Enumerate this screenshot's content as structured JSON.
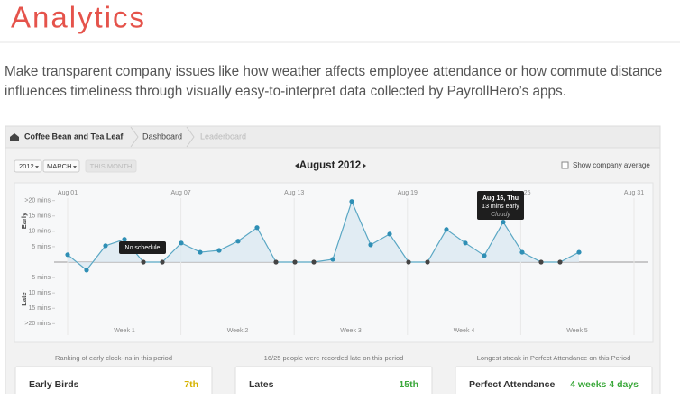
{
  "header": {
    "title": "Analytics",
    "description": [
      "Make transparent company issues like how weather affects employee attendance or how commute distance",
      "influences timeliness through visually easy-to-interpret data collected by PayrollHero’s apps."
    ]
  },
  "app": {
    "breadcrumb": [
      "Coffee Bean and Tea Leaf",
      "Dashboard",
      "Leaderboard"
    ],
    "controls": {
      "year": "2012",
      "month": "MARCH",
      "this_month": "THIS MONTH",
      "company_average": "Show company average"
    }
  },
  "chart_data": {
    "type": "area",
    "title": "August 2012",
    "top_labels": [
      "Aug 01",
      "Aug 07",
      "Aug 13",
      "Aug 19",
      "Aug 25",
      "Aug 31"
    ],
    "bottom_labels": [
      "Week 1",
      "Week 2",
      "Week 3",
      "Week 4",
      "Week 5"
    ],
    "y_labels": [
      "Early",
      "Late"
    ],
    "values": [
      2.4,
      -2.6,
      5.3,
      7.4,
      0,
      0,
      6.2,
      3.2,
      3.8,
      6.8,
      11.2,
      0,
      0,
      0,
      0.9,
      19.7,
      5.6,
      9.1,
      0,
      0,
      10.6,
      6.2,
      2.1,
      13,
      3.2,
      0,
      0,
      3.2
    ],
    "color": "#5aa7c4",
    "ylim": [
      -24,
      24
    ],
    "yticks": [
      {
        "value": 20,
        "label": ">20 mins"
      },
      {
        "value": 15,
        "label": "15 mins"
      },
      {
        "value": 10,
        "label": "10 mins"
      },
      {
        "value": 5,
        "label": "5 mins"
      },
      {
        "value": -5,
        "label": "5 mins"
      },
      {
        "value": -10,
        "label": "10 mins"
      },
      {
        "value": -15,
        "label": "15 mins"
      },
      {
        "value": -20,
        "label": ">20 mins"
      }
    ],
    "annotations": [
      {
        "text": "No schedule"
      },
      {
        "text": "Aug 16, Thu",
        "detail": "13 mins early",
        "weather": "Cloudy"
      }
    ]
  },
  "stats": [
    {
      "caption": "Ranking of early clock-ins in this period",
      "label": "Early Birds",
      "value": "7th"
    },
    {
      "caption": "16/25 people were recorded late on this period",
      "label": "Lates",
      "value": "15th"
    },
    {
      "caption": "Longest streak in Perfect Attendance on this Period",
      "label": "Perfect Attendance",
      "value": "4 weeks 4 days"
    }
  ]
}
